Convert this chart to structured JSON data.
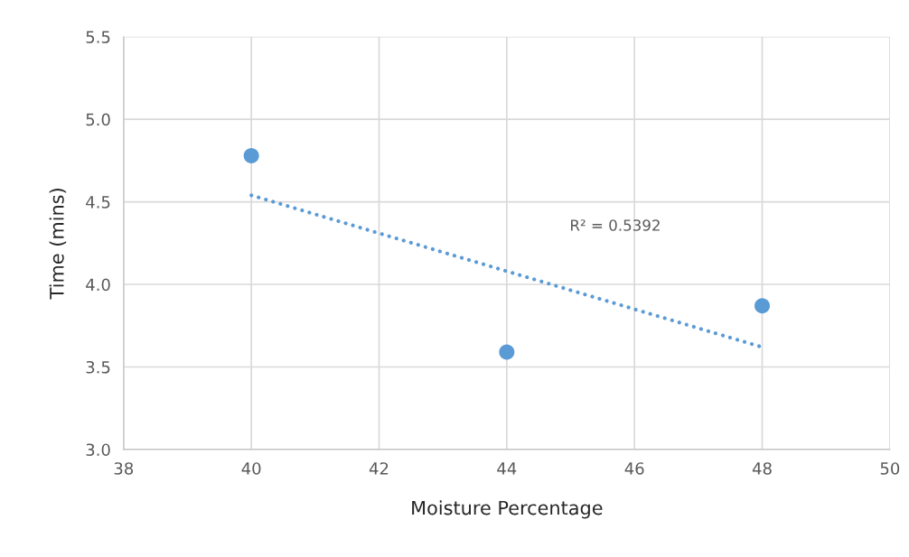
{
  "chart_data": {
    "type": "scatter",
    "xlabel": "Moisture Percentage",
    "ylabel": "Time (mins)",
    "series": [
      {
        "color": "#5b9bd5",
        "marker": "circle",
        "x": [
          40,
          44,
          48
        ],
        "values": [
          4.78,
          3.59,
          3.87
        ]
      },
      {
        "type": "line",
        "color": "#5b9bd5",
        "marker": "none",
        "line_style": "dotted",
        "x": [
          40,
          48
        ],
        "values": [
          4.54,
          3.62
        ]
      }
    ],
    "annotations": [
      "R² = 0.5392"
    ],
    "xlim": [
      38,
      50
    ],
    "xticks": [
      38,
      40,
      42,
      44,
      46,
      48,
      50
    ],
    "ylim": [
      3.0,
      5.5
    ],
    "yticks": [
      {
        "value": 3.0,
        "label": "3.0"
      },
      {
        "value": 3.5,
        "label": "3.5"
      },
      {
        "value": 4.0,
        "label": "4.0"
      },
      {
        "value": 4.5,
        "label": "4.5"
      },
      {
        "value": 5.0,
        "label": "5.0"
      },
      {
        "value": 5.5,
        "label": "5.5"
      }
    ],
    "grid": true
  }
}
